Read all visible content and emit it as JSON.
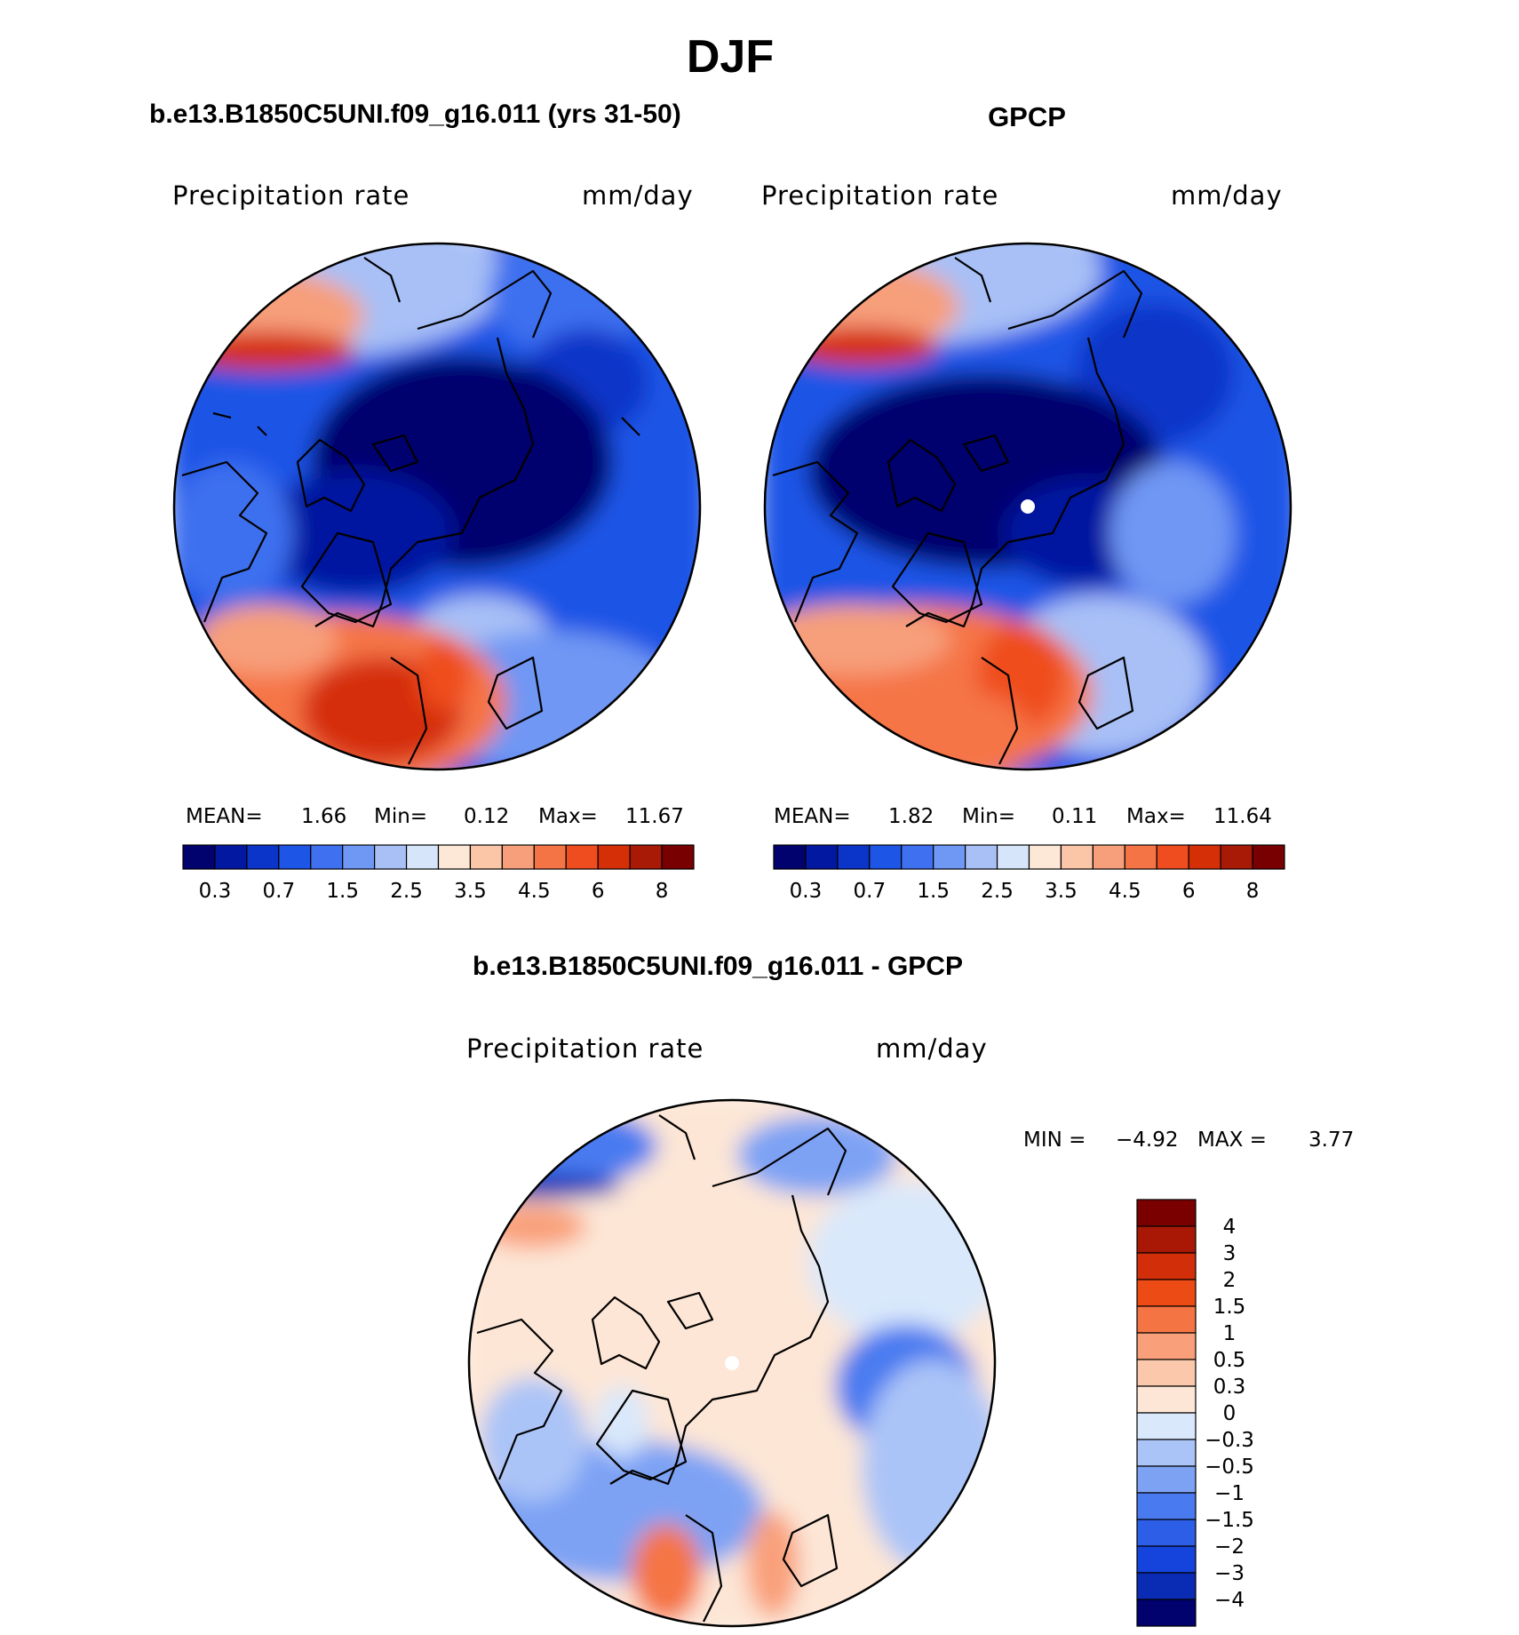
{
  "season_title": "DJF",
  "panels": {
    "model": {
      "title": "b.e13.B1850C5UNI.f09_g16.011 (yrs 31-50)",
      "variable": "Precipitation rate",
      "units": "mm/day",
      "mean_label": "MEAN=",
      "mean_value": "1.66",
      "min_label": "Min=",
      "min_value": "0.12",
      "max_label": "Max=",
      "max_value": "11.67"
    },
    "obs": {
      "title": "GPCP",
      "variable": "Precipitation rate",
      "units": "mm/day",
      "mean_label": "MEAN=",
      "mean_value": "1.82",
      "min_label": "Min=",
      "min_value": "0.11",
      "max_label": "Max=",
      "max_value": "11.64"
    },
    "diff": {
      "title": "b.e13.B1850C5UNI.f09_g16.011 - GPCP",
      "variable": "Precipitation rate",
      "units": "mm/day",
      "min_label": "MIN =",
      "min_value": "−4.92",
      "max_label": "MAX =",
      "max_value": "3.77"
    }
  },
  "colors": {
    "abs_scale": [
      "#02026e",
      "#0318a0",
      "#0a35c8",
      "#1d55e6",
      "#3e70ef",
      "#6f97f4",
      "#a8c0f6",
      "#d7e5fb",
      "#fde8d8",
      "#fbc5a8",
      "#f79f7a",
      "#f57446",
      "#ef4d1f",
      "#d52f08",
      "#a81a05",
      "#780000"
    ],
    "diff_scale": [
      "#02026e",
      "#0a2bb3",
      "#1544dd",
      "#2d5ee8",
      "#4a7af0",
      "#7da2f4",
      "#abc4f7",
      "#d9e8fb",
      "#fde6d6",
      "#fbc8ab",
      "#f9a07a",
      "#f57444",
      "#ec4b15",
      "#d22e0a",
      "#a81804",
      "#7a0000"
    ]
  },
  "chart_data": [
    {
      "type": "heatmap",
      "panel": "model",
      "projection": "north polar stereographic",
      "colorbar_levels": [
        0.2,
        0.3,
        0.5,
        0.7,
        1,
        1.5,
        2,
        2.5,
        3,
        3.5,
        4,
        4.5,
        5,
        6,
        7,
        8
      ],
      "colorbar_tick_labels": [
        "0.3",
        "0.7",
        "1.5",
        "2.5",
        "3.5",
        "4.5",
        "6",
        "8"
      ],
      "mean": 1.66,
      "min": 0.12,
      "max": 11.67
    },
    {
      "type": "heatmap",
      "panel": "obs",
      "projection": "north polar stereographic",
      "colorbar_levels": [
        0.2,
        0.3,
        0.5,
        0.7,
        1,
        1.5,
        2,
        2.5,
        3,
        3.5,
        4,
        4.5,
        5,
        6,
        7,
        8
      ],
      "colorbar_tick_labels": [
        "0.3",
        "0.7",
        "1.5",
        "2.5",
        "3.5",
        "4.5",
        "6",
        "8"
      ],
      "mean": 1.82,
      "min": 0.11,
      "max": 11.64
    },
    {
      "type": "heatmap",
      "panel": "diff",
      "projection": "north polar stereographic",
      "colorbar_tick_labels": [
        "4",
        "3",
        "2",
        "1.5",
        "1",
        "0.5",
        "0.3",
        "0",
        "−0.3",
        "−0.5",
        "−1",
        "−1.5",
        "−2",
        "−3",
        "−4"
      ],
      "min": -4.92,
      "max": 3.77
    }
  ]
}
